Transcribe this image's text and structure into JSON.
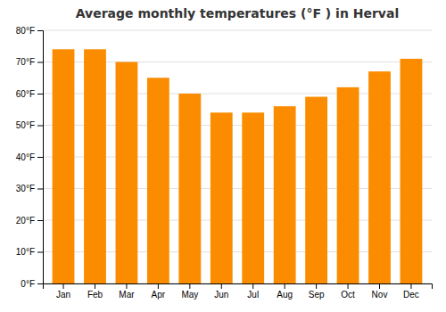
{
  "chart_data": {
    "type": "bar",
    "title": "Average monthly temperatures (°F ) in Herval",
    "categories": [
      "Jan",
      "Feb",
      "Mar",
      "Apr",
      "May",
      "Jun",
      "Jul",
      "Aug",
      "Sep",
      "Oct",
      "Nov",
      "Dec"
    ],
    "values": [
      74,
      74,
      70,
      65,
      60,
      54,
      54,
      56,
      59,
      62,
      67,
      71
    ],
    "color": "#FB8C00",
    "ylim": [
      0,
      80
    ],
    "yticks": [
      {
        "value": 0,
        "label": "0°F"
      },
      {
        "value": 10,
        "label": "10°F"
      },
      {
        "value": 20,
        "label": "20°F"
      },
      {
        "value": 30,
        "label": "30°F"
      },
      {
        "value": 40,
        "label": "40°F"
      },
      {
        "value": 50,
        "label": "50°F"
      },
      {
        "value": 60,
        "label": "60°F"
      },
      {
        "value": 70,
        "label": "70°F"
      },
      {
        "value": 80,
        "label": "80°F"
      }
    ],
    "grid": true
  }
}
